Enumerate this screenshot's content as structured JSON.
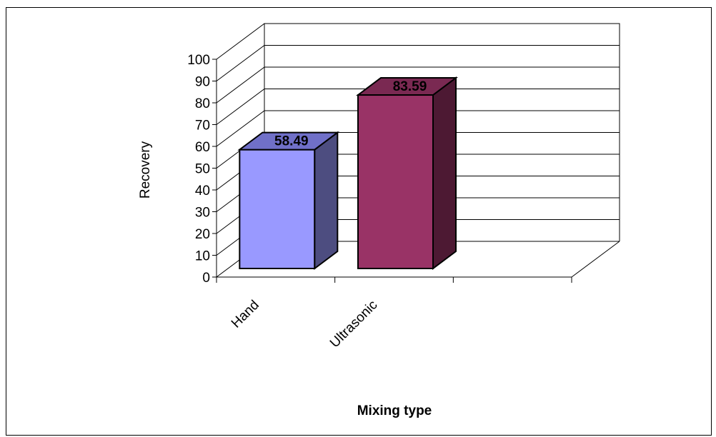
{
  "chart_data": {
    "type": "bar",
    "style": "3d-column",
    "categories": [
      "Hand",
      "Ultrasonic"
    ],
    "values": [
      58.49,
      83.59
    ],
    "data_labels": [
      "58.49",
      "83.59"
    ],
    "title": "",
    "xlabel": "Mixing type",
    "ylabel": "Recovery",
    "ylim": [
      0,
      100
    ],
    "yticks": [
      "0",
      "10",
      "20",
      "30",
      "40",
      "50",
      "60",
      "70",
      "80",
      "90",
      "100"
    ],
    "grid": true,
    "legend": "none",
    "bar_colors": [
      {
        "front": "#9999ff",
        "side": "#4d4d80",
        "top": "#7070c8"
      },
      {
        "front": "#993366",
        "side": "#4d1933",
        "top": "#7a2952"
      }
    ]
  }
}
